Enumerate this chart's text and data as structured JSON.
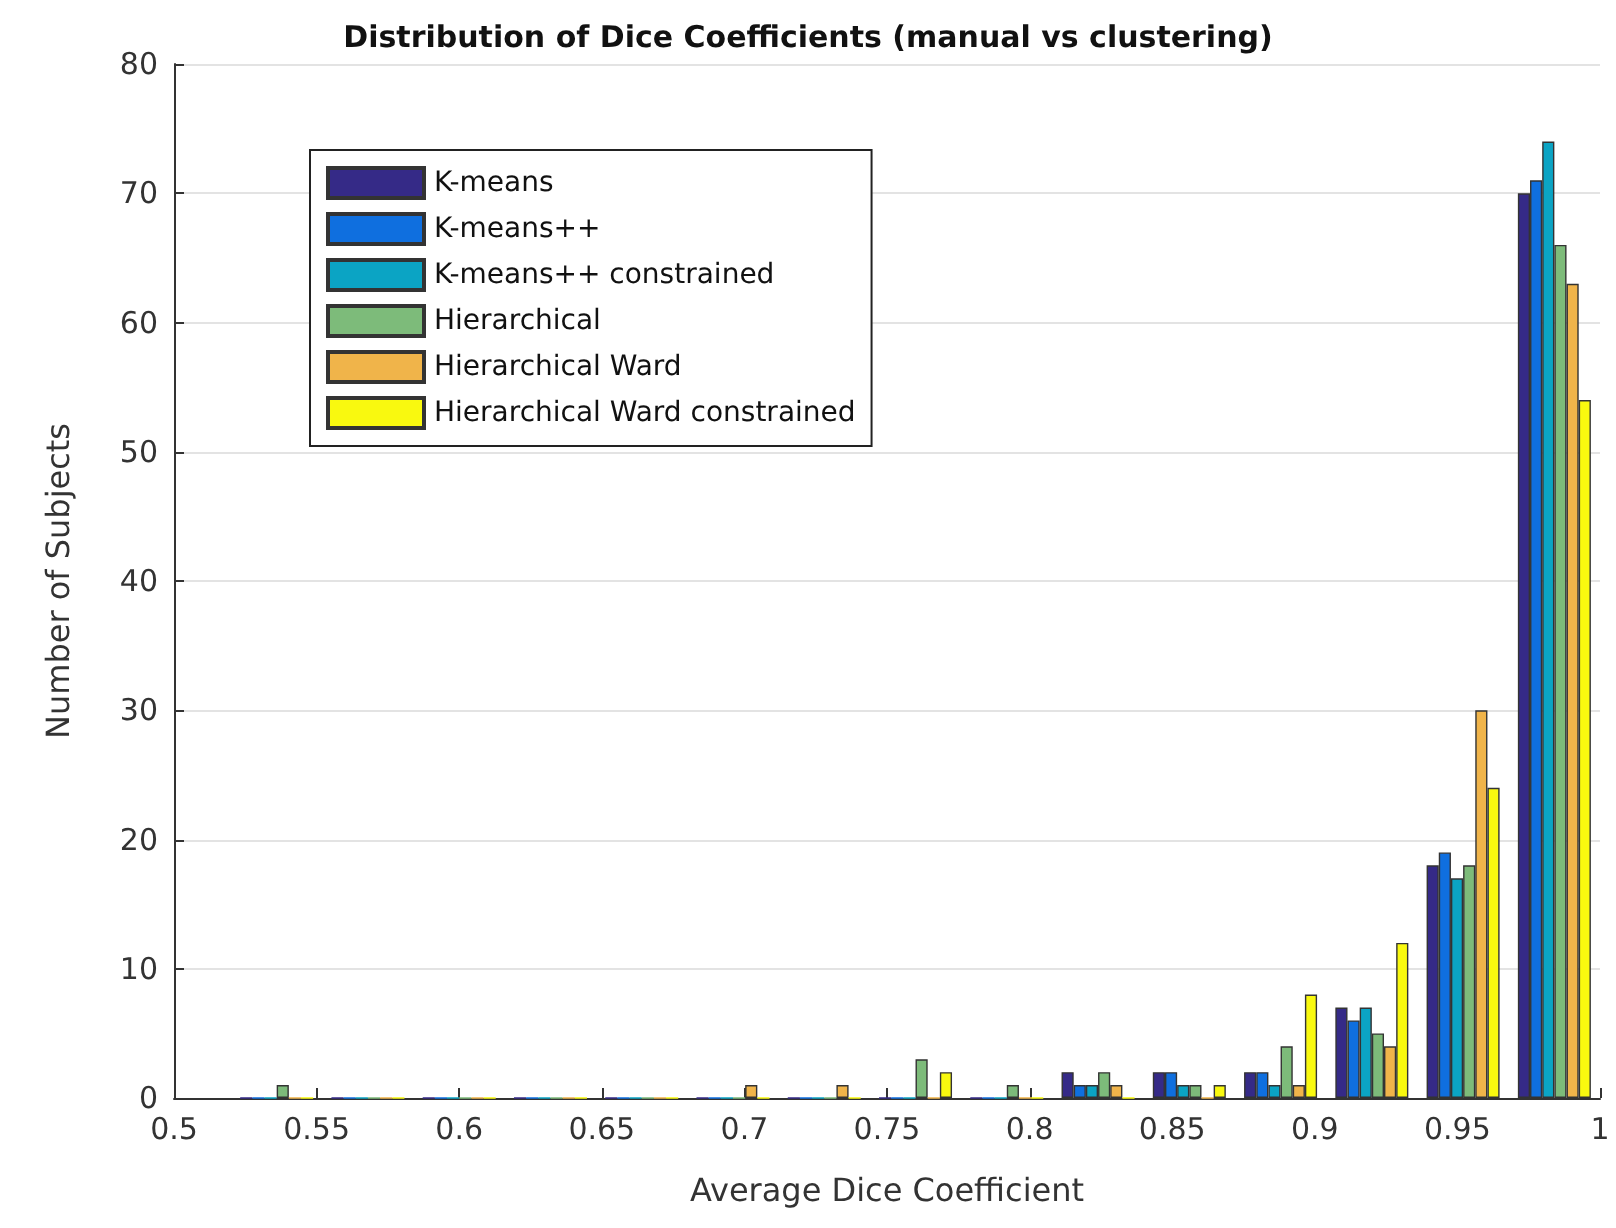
{
  "chart_data": {
    "type": "bar",
    "title": "Distribution of Dice Coefficients (manual vs clustering)",
    "xlabel": "Average Dice Coefficient",
    "ylabel": "Number of Subjects",
    "x": [
      0.536,
      0.568,
      0.6,
      0.632,
      0.664,
      0.696,
      0.728,
      0.76,
      0.792,
      0.824,
      0.856,
      0.888,
      0.92,
      0.952,
      0.984
    ],
    "series": [
      {
        "name": "K-means",
        "color": "#352a87",
        "values": [
          0,
          0,
          0,
          0,
          0,
          0,
          0,
          0,
          0,
          2,
          2,
          2,
          7,
          18,
          70
        ]
      },
      {
        "name": "K-means++",
        "color": "#0f6fdf",
        "values": [
          0,
          0,
          0,
          0,
          0,
          0,
          0,
          0,
          0,
          1,
          2,
          2,
          6,
          19,
          71
        ]
      },
      {
        "name": "K-means++ constrained",
        "color": "#0ba4c4",
        "values": [
          0,
          0,
          0,
          0,
          0,
          0,
          0,
          0,
          0,
          1,
          1,
          1,
          7,
          17,
          74
        ]
      },
      {
        "name": "Hierarchical",
        "color": "#7dbb7a",
        "values": [
          1,
          0,
          0,
          0,
          0,
          0,
          0,
          3,
          1,
          2,
          1,
          4,
          5,
          18,
          66
        ]
      },
      {
        "name": "Hierarchical Ward",
        "color": "#f0b44a",
        "values": [
          0,
          0,
          0,
          0,
          0,
          1,
          1,
          0,
          0,
          1,
          0,
          1,
          4,
          30,
          63
        ]
      },
      {
        "name": "Hierarchical Ward constrained",
        "color": "#f9f90f",
        "values": [
          0,
          0,
          0,
          0,
          0,
          0,
          0,
          2,
          0,
          0,
          1,
          8,
          12,
          24,
          54
        ]
      }
    ],
    "xlim": [
      0.5,
      1
    ],
    "xticks": [
      0.5,
      0.55,
      0.6,
      0.65,
      0.7,
      0.75,
      0.8,
      0.85,
      0.9,
      0.95,
      1
    ],
    "ylim": [
      0,
      80
    ],
    "yticks": [
      0,
      10,
      20,
      30,
      40,
      50,
      60,
      70,
      80
    ],
    "grid": "y",
    "legend": "top left"
  }
}
